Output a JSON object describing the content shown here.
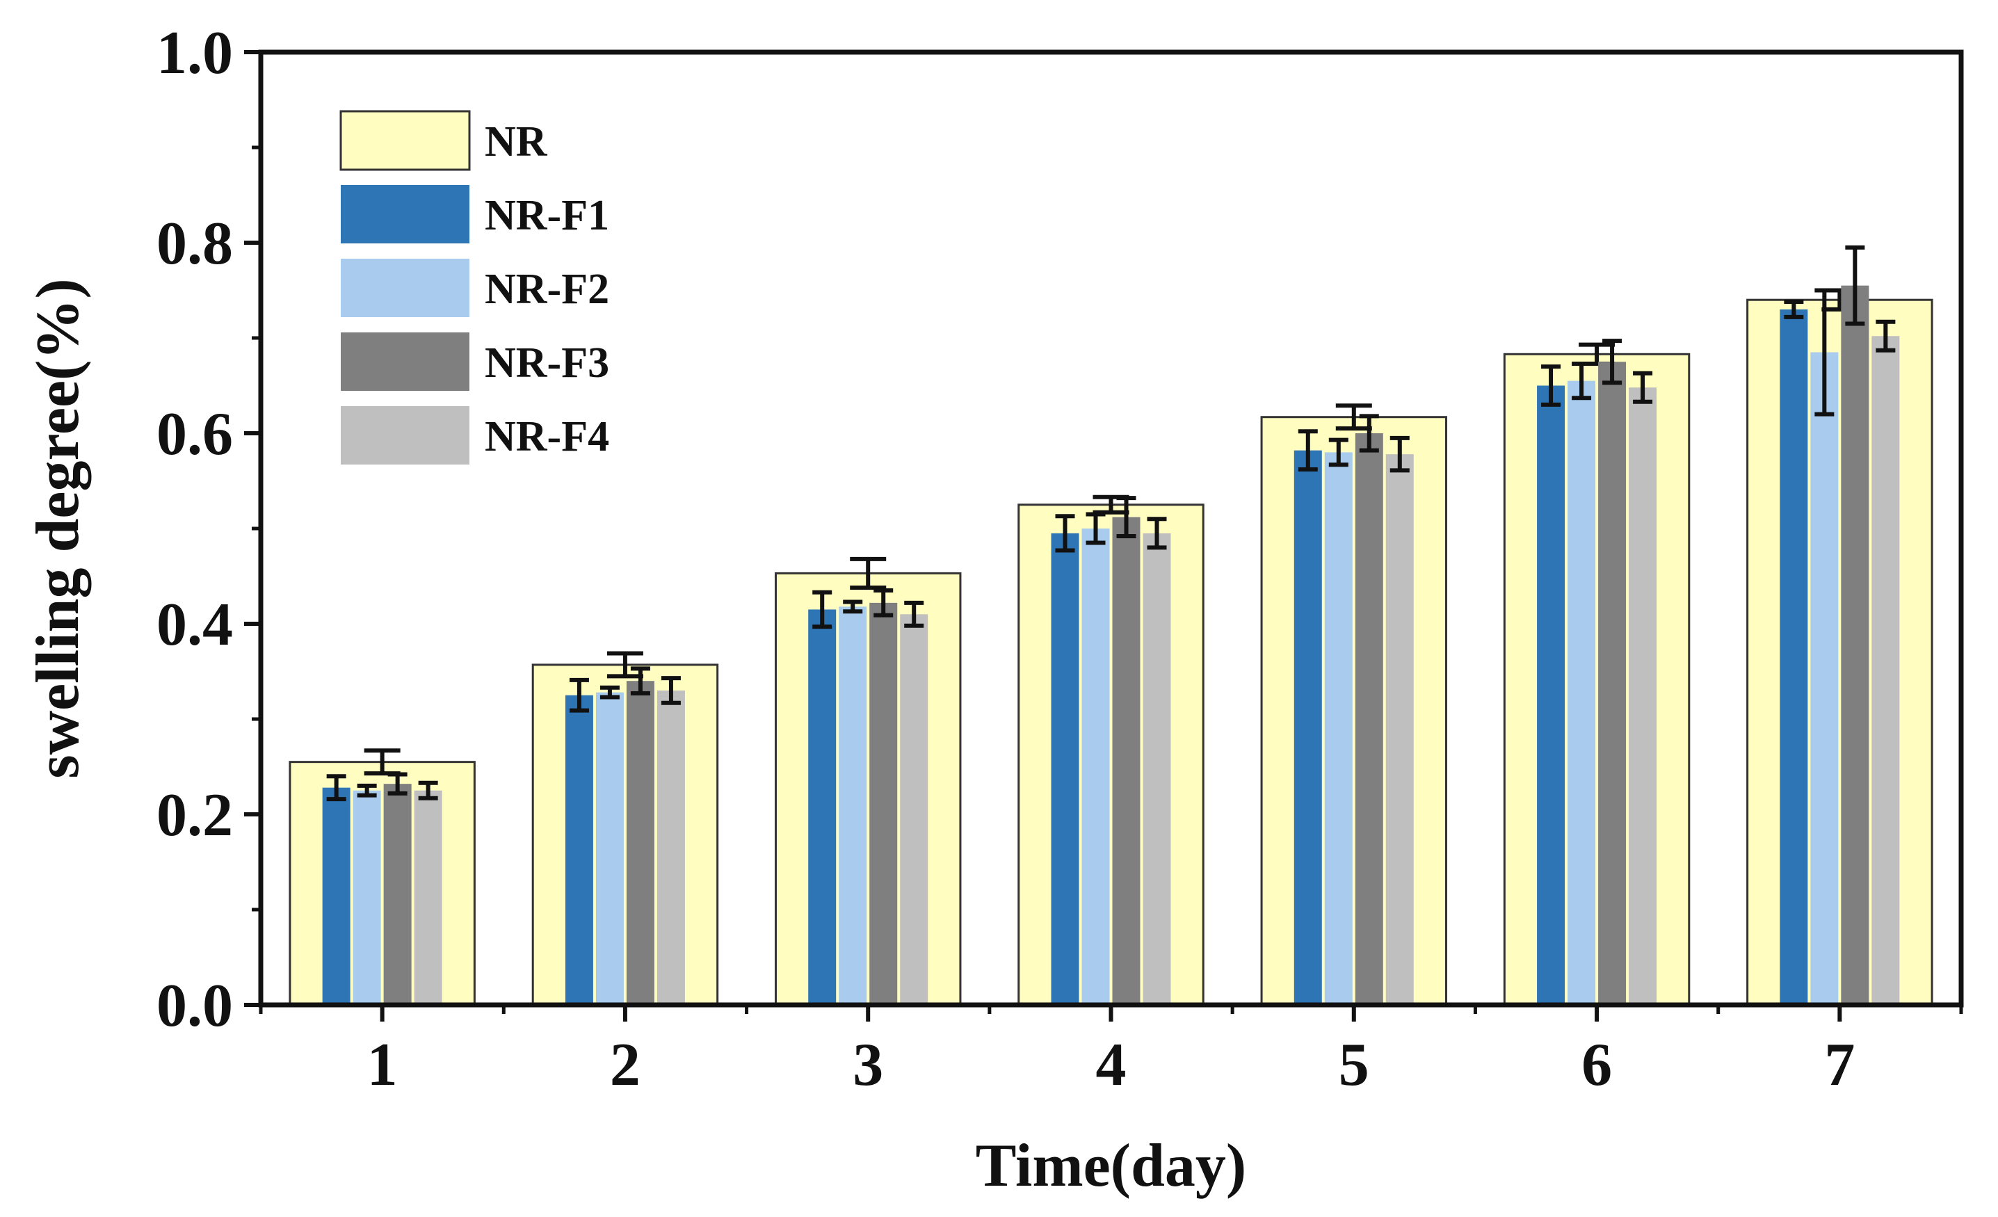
{
  "chart_data": {
    "type": "bar",
    "title": "",
    "xlabel": "Time(day)",
    "ylabel": "swelling degree(%)",
    "ylim": [
      0,
      1.0
    ],
    "yticks": [
      "0.0",
      "0.2",
      "0.4",
      "0.6",
      "0.8",
      "1.0"
    ],
    "categories": [
      "1",
      "2",
      "3",
      "4",
      "5",
      "6",
      "7"
    ],
    "grid": false,
    "legend_position": "top-left",
    "background_series": {
      "name": "NR",
      "color": "#FFFDC0",
      "edge_color": "#333333",
      "values": [
        0.255,
        0.357,
        0.453,
        0.525,
        0.617,
        0.683,
        0.74
      ],
      "errors": [
        0.012,
        0.012,
        0.015,
        0.008,
        0.012,
        0.01,
        0.01
      ]
    },
    "series": [
      {
        "name": "NR-F1",
        "color": "#2E75B6",
        "values": [
          0.228,
          0.325,
          0.415,
          0.495,
          0.582,
          0.65,
          0.73
        ],
        "errors": [
          0.012,
          0.016,
          0.018,
          0.018,
          0.02,
          0.02,
          0.008
        ]
      },
      {
        "name": "NR-F2",
        "color": "#A9CCEE",
        "values": [
          0.225,
          0.328,
          0.418,
          0.5,
          0.58,
          0.655,
          0.685
        ],
        "errors": [
          0.005,
          0.005,
          0.005,
          0.015,
          0.013,
          0.018,
          0.065
        ]
      },
      {
        "name": "NR-F3",
        "color": "#7F7F7F",
        "values": [
          0.232,
          0.34,
          0.422,
          0.512,
          0.6,
          0.675,
          0.755
        ],
        "errors": [
          0.01,
          0.013,
          0.013,
          0.02,
          0.018,
          0.022,
          0.04
        ]
      },
      {
        "name": "NR-F4",
        "color": "#BFBFBF",
        "values": [
          0.225,
          0.33,
          0.41,
          0.495,
          0.578,
          0.648,
          0.702
        ],
        "errors": [
          0.008,
          0.013,
          0.012,
          0.015,
          0.017,
          0.015,
          0.015
        ]
      }
    ]
  }
}
